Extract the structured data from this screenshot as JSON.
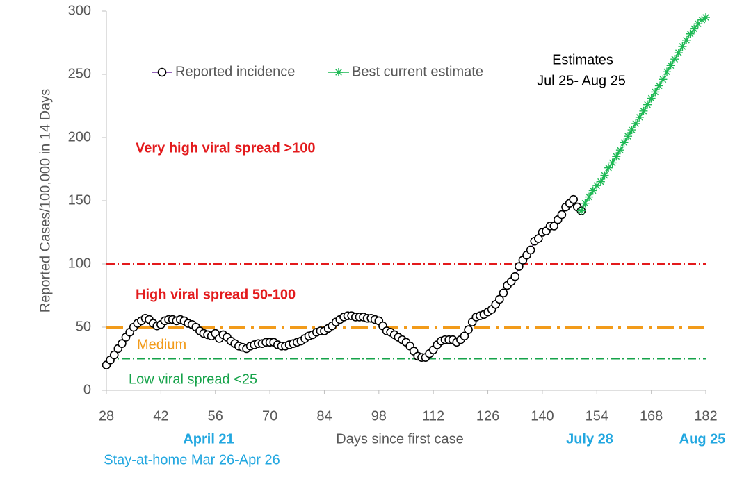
{
  "chart_data": {
    "type": "line",
    "xlabel": "Days since first case",
    "ylabel": "Reported Cases/100,000 in 14 Days",
    "xlim": [
      28,
      182
    ],
    "xticks": [
      28,
      42,
      56,
      70,
      84,
      98,
      112,
      126,
      140,
      154,
      168,
      182
    ],
    "ylim": [
      0,
      300
    ],
    "yticks": [
      0,
      50,
      100,
      150,
      200,
      250,
      300
    ],
    "grid": false,
    "series": [
      {
        "name": "Reported incidence",
        "color": "#7030a0",
        "marker": "circle",
        "marker_color": "#000000",
        "x": [
          28,
          29,
          30,
          31,
          32,
          33,
          34,
          35,
          36,
          37,
          38,
          39,
          40,
          41,
          42,
          43,
          44,
          45,
          46,
          47,
          48,
          49,
          50,
          51,
          52,
          53,
          54,
          55,
          56,
          57,
          58,
          59,
          60,
          61,
          62,
          63,
          64,
          65,
          66,
          67,
          68,
          69,
          70,
          71,
          72,
          73,
          74,
          75,
          76,
          77,
          78,
          79,
          80,
          81,
          82,
          83,
          84,
          85,
          86,
          87,
          88,
          89,
          90,
          91,
          92,
          93,
          94,
          95,
          96,
          97,
          98,
          99,
          100,
          101,
          102,
          103,
          104,
          105,
          106,
          107,
          108,
          109,
          110,
          111,
          112,
          113,
          114,
          115,
          116,
          117,
          118,
          119,
          120,
          121,
          122,
          123,
          124,
          125,
          126,
          127,
          128,
          129,
          130,
          131,
          132,
          133,
          134,
          135,
          136,
          137,
          138,
          139,
          140,
          141,
          142,
          143,
          144,
          145,
          146,
          147,
          148,
          149,
          150
        ],
        "values": [
          20,
          24,
          28,
          33,
          37,
          42,
          46,
          50,
          53,
          55,
          57,
          56,
          53,
          51,
          52,
          55,
          56,
          56,
          55,
          56,
          55,
          53,
          52,
          50,
          47,
          45,
          44,
          43,
          45,
          41,
          44,
          42,
          39,
          37,
          35,
          34,
          33,
          35,
          36,
          37,
          37,
          38,
          38,
          38,
          36,
          35,
          35,
          36,
          37,
          38,
          39,
          41,
          43,
          44,
          46,
          47,
          47,
          49,
          51,
          54,
          56,
          58,
          59,
          59,
          58,
          58,
          58,
          57,
          57,
          56,
          55,
          51,
          47,
          46,
          44,
          42,
          40,
          38,
          35,
          31,
          27,
          26,
          26,
          29,
          32,
          36,
          39,
          40,
          40,
          40,
          38,
          40,
          43,
          48,
          54,
          58,
          59,
          60,
          62,
          64,
          68,
          72,
          77,
          83,
          86,
          90,
          98,
          103,
          107,
          111,
          118,
          120,
          125,
          126,
          130,
          130,
          135,
          139,
          145,
          148,
          151,
          145,
          142
        ]
      },
      {
        "name": "Best current estimate",
        "color": "#1db954",
        "marker": "star",
        "marker_color": "#1db954",
        "x": [
          150,
          151,
          152,
          153,
          154,
          155,
          156,
          157,
          158,
          159,
          160,
          161,
          162,
          163,
          164,
          165,
          166,
          167,
          168,
          169,
          170,
          171,
          172,
          173,
          174,
          175,
          176,
          177,
          178,
          179,
          180,
          181,
          182
        ],
        "values": [
          142,
          148,
          153,
          158,
          162,
          165,
          170,
          176,
          180,
          185,
          190,
          196,
          201,
          206,
          211,
          216,
          221,
          226,
          231,
          236,
          241,
          246,
          252,
          257,
          262,
          267,
          272,
          277,
          282,
          286,
          290,
          293,
          295
        ]
      }
    ],
    "reference_lines": [
      {
        "value": 100,
        "color": "#e31a1c",
        "width": 2
      },
      {
        "value": 50,
        "color": "#f29b1a",
        "width": 4
      },
      {
        "value": 25,
        "color": "#16a34a",
        "width": 2
      }
    ],
    "annotations": [
      "Very high viral spread >100",
      "High viral spread 50-100",
      "Medium",
      "Low viral spread <25",
      "Estimates",
      "Jul 25- Aug 25",
      "April 21",
      "July 28",
      "Aug 25",
      "Stay-at-home Mar 26-Apr 26"
    ]
  }
}
